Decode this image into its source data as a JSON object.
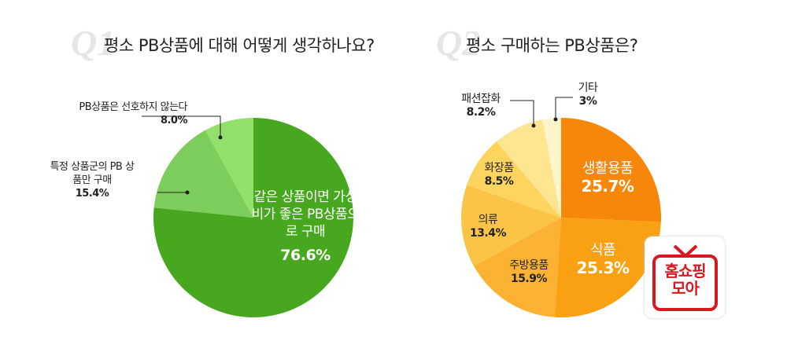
{
  "chart_data": [
    {
      "type": "pie",
      "title": "평소 PB상품에 대해 어떻게 생각하나요?",
      "qlabel": "Q1",
      "slices": [
        {
          "label": "같은 상품이면 가성비가 좋은 PB상품으로 구매",
          "value": 76.6,
          "display": "76.6%",
          "color": "#47a81f"
        },
        {
          "label": "특정 상품군의 PB 상품만 구매",
          "value": 15.4,
          "display": "15.4%",
          "color": "#7dcd5d"
        },
        {
          "label": "PB상품은 선호하지 않는다",
          "value": 8.0,
          "display": "8.0%",
          "color": "#93e16c"
        }
      ]
    },
    {
      "type": "pie",
      "title": "평소 구매하는 PB상품은?",
      "qlabel": "Q2",
      "slices": [
        {
          "label": "생활용품",
          "value": 25.7,
          "display": "25.7%",
          "color": "#f7870b"
        },
        {
          "label": "식품",
          "value": 25.3,
          "display": "25.3%",
          "color": "#f9a013"
        },
        {
          "label": "주방용품",
          "value": 15.9,
          "display": "15.9%",
          "color": "#fbb232"
        },
        {
          "label": "의류",
          "value": 13.4,
          "display": "13.4%",
          "color": "#fcc446"
        },
        {
          "label": "화장품",
          "value": 8.5,
          "display": "8.5%",
          "color": "#fdd45e"
        },
        {
          "label": "패션잡화",
          "value": 8.2,
          "display": "8.2%",
          "color": "#fee592"
        },
        {
          "label": "기타",
          "value": 3,
          "display": "3%",
          "color": "#fef5cc"
        }
      ]
    }
  ],
  "logo": {
    "line1": "홈쇼핑",
    "line2": "모아",
    "color": "#d7191f"
  }
}
